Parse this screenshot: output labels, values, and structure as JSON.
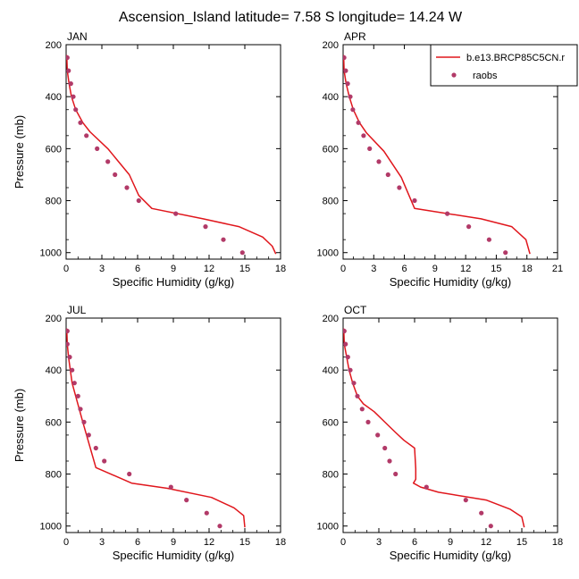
{
  "figure_title": "Ascension_Island  latitude= 7.58 S longitude= 14.24 W",
  "colors": {
    "model": "#e0161c",
    "obs": "#b23a68",
    "axis": "#000000",
    "background": "#ffffff"
  },
  "legend": {
    "placement": "top-right of APR panel",
    "entries": [
      {
        "label": "b.e13.BRCP85C5CN.r",
        "kind": "line"
      },
      {
        "label": "raobs",
        "kind": "marker"
      }
    ]
  },
  "chart_data": [
    {
      "type": "line",
      "title": "JAN",
      "xlabel": "Specific Humidity (g/kg)",
      "ylabel": "Pressure (mb)",
      "xlim": [
        0,
        18
      ],
      "ylim": [
        200,
        1025
      ],
      "y_reversed": true,
      "xticks": [
        0,
        3,
        6,
        9,
        12,
        15,
        18
      ],
      "yticks": [
        200,
        400,
        600,
        800,
        1000
      ],
      "series": [
        {
          "name": "b.e13.BRCP85C5CN.r",
          "kind": "line",
          "x": [
            0.05,
            0.1,
            0.25,
            0.45,
            0.8,
            1.4,
            2.0,
            3.5,
            5.3,
            6.1,
            7.2,
            11.5,
            14.5,
            16.5,
            17.3,
            17.6
          ],
          "y": [
            240,
            300,
            350,
            400,
            450,
            500,
            535,
            600,
            700,
            780,
            830,
            870,
            900,
            940,
            975,
            1005
          ]
        },
        {
          "name": "raobs",
          "kind": "marker",
          "x": [
            0.1,
            0.2,
            0.4,
            0.6,
            0.8,
            1.2,
            1.7,
            2.6,
            3.5,
            4.1,
            5.1,
            6.1,
            9.2,
            11.7,
            13.2,
            14.8
          ],
          "y": [
            250,
            300,
            350,
            400,
            450,
            500,
            550,
            600,
            650,
            700,
            750,
            800,
            850,
            900,
            950,
            1000
          ]
        }
      ]
    },
    {
      "type": "line",
      "title": "APR",
      "xlabel": "Specific Humidity (g/kg)",
      "ylabel": "",
      "xlim": [
        0,
        21
      ],
      "ylim": [
        200,
        1025
      ],
      "y_reversed": true,
      "xticks": [
        0,
        3,
        6,
        9,
        12,
        15,
        18,
        21
      ],
      "yticks": [
        200,
        400,
        600,
        800,
        1000
      ],
      "series": [
        {
          "name": "b.e13.BRCP85C5CN.r",
          "kind": "line",
          "x": [
            0.05,
            0.1,
            0.3,
            0.6,
            1.0,
            1.6,
            2.3,
            4.0,
            5.7,
            7.0,
            13.5,
            16.5,
            17.9,
            18.3
          ],
          "y": [
            240,
            300,
            350,
            400,
            450,
            500,
            540,
            610,
            710,
            830,
            870,
            900,
            950,
            1005
          ]
        },
        {
          "name": "raobs",
          "kind": "marker",
          "x": [
            0.1,
            0.25,
            0.45,
            0.7,
            0.95,
            1.5,
            2.0,
            2.6,
            3.5,
            4.4,
            5.5,
            7.0,
            10.2,
            12.3,
            14.3,
            15.9
          ],
          "y": [
            250,
            300,
            350,
            400,
            450,
            500,
            550,
            600,
            650,
            700,
            750,
            800,
            850,
            900,
            950,
            1000
          ]
        }
      ]
    },
    {
      "type": "line",
      "title": "JUL",
      "xlabel": "Specific Humidity (g/kg)",
      "ylabel": "Pressure (mb)",
      "xlim": [
        0,
        18
      ],
      "ylim": [
        200,
        1025
      ],
      "y_reversed": true,
      "xticks": [
        0,
        3,
        6,
        9,
        12,
        15,
        18
      ],
      "yticks": [
        200,
        400,
        600,
        800,
        1000
      ],
      "series": [
        {
          "name": "b.e13.BRCP85C5CN.r",
          "kind": "line",
          "x": [
            0.05,
            0.1,
            0.2,
            0.35,
            0.5,
            0.8,
            1.4,
            2.5,
            5.5,
            8.5,
            12.2,
            14.1,
            14.9,
            15.0
          ],
          "y": [
            240,
            300,
            350,
            400,
            450,
            500,
            600,
            775,
            835,
            855,
            890,
            930,
            960,
            1005
          ]
        },
        {
          "name": "raobs",
          "kind": "marker",
          "x": [
            0.1,
            0.1,
            0.3,
            0.5,
            0.7,
            1.0,
            1.2,
            1.5,
            1.9,
            2.5,
            3.2,
            5.3,
            8.8,
            10.1,
            11.8,
            12.9
          ],
          "y": [
            250,
            300,
            350,
            400,
            450,
            500,
            550,
            600,
            650,
            700,
            750,
            800,
            850,
            900,
            950,
            1000
          ]
        }
      ]
    },
    {
      "type": "line",
      "title": "OCT",
      "xlabel": "Specific Humidity (g/kg)",
      "ylabel": "",
      "xlim": [
        0,
        18
      ],
      "ylim": [
        200,
        1025
      ],
      "y_reversed": true,
      "xticks": [
        0,
        3,
        6,
        9,
        12,
        15,
        18
      ],
      "yticks": [
        200,
        400,
        600,
        800,
        1000
      ],
      "series": [
        {
          "name": "b.e13.BRCP85C5CN.r",
          "kind": "line",
          "x": [
            0.05,
            0.1,
            0.3,
            0.5,
            0.8,
            1.2,
            1.7,
            2.6,
            3.5,
            4.4,
            5.1,
            6.0,
            6.1,
            6.1,
            5.9,
            6.5,
            8.0,
            12.0,
            14.0,
            15.0,
            15.2
          ],
          "y": [
            240,
            300,
            350,
            400,
            450,
            500,
            530,
            560,
            600,
            640,
            670,
            700,
            780,
            820,
            835,
            850,
            870,
            900,
            935,
            965,
            1005
          ]
        },
        {
          "name": "raobs",
          "kind": "marker",
          "x": [
            0.1,
            0.2,
            0.4,
            0.6,
            0.9,
            1.2,
            1.6,
            2.1,
            2.9,
            3.5,
            3.9,
            4.4,
            7.0,
            10.3,
            11.6,
            12.4
          ],
          "y": [
            250,
            300,
            350,
            400,
            450,
            500,
            550,
            600,
            650,
            700,
            750,
            800,
            850,
            900,
            950,
            1000
          ]
        }
      ]
    }
  ]
}
